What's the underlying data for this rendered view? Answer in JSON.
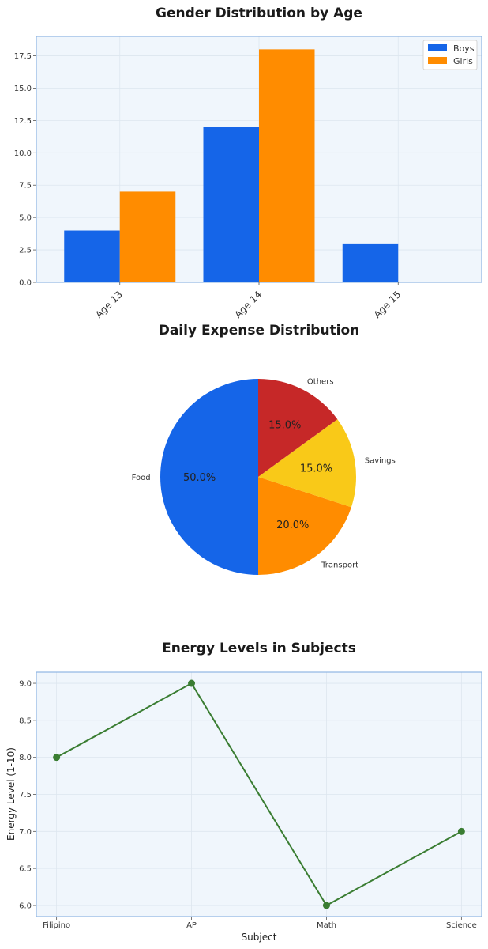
{
  "chart_data": [
    {
      "type": "bar",
      "title": "Gender Distribution by Age",
      "categories": [
        "Age 13",
        "Age 14",
        "Age 15"
      ],
      "series": [
        {
          "name": "Boys",
          "values": [
            4,
            12,
            3
          ],
          "color": "#1565e8"
        },
        {
          "name": "Girls",
          "values": [
            7,
            18,
            0
          ],
          "color": "#ff8c00"
        }
      ],
      "ylim": [
        0,
        19
      ],
      "yticks": [
        0,
        2.5,
        5,
        7.5,
        10,
        12.5,
        15,
        17.5
      ],
      "ytick_labels": [
        "0.0",
        "2.5",
        "5.0",
        "7.5",
        "10.0",
        "12.5",
        "15.0",
        "17.5"
      ],
      "legend": "top-right",
      "grid": true
    },
    {
      "type": "pie",
      "title": "Daily Expense Distribution",
      "labels": [
        "Food",
        "Transport",
        "Savings",
        "Others"
      ],
      "values": [
        50,
        20,
        15,
        15
      ],
      "pct_labels": [
        "50.0%",
        "20.0%",
        "15.0%",
        "15.0%"
      ],
      "colors": [
        "#1565e8",
        "#ff8c00",
        "#f9c918",
        "#c62828"
      ]
    },
    {
      "type": "line",
      "title": "Energy Levels in Subjects",
      "categories": [
        "Filipino",
        "AP",
        "Math",
        "Science"
      ],
      "values": [
        8,
        9,
        6,
        7
      ],
      "xlabel": "Subject",
      "ylabel": "Energy Level (1-10)",
      "ylim": [
        5.85,
        9.15
      ],
      "yticks": [
        6.0,
        6.5,
        7.0,
        7.5,
        8.0,
        8.5,
        9.0
      ],
      "ytick_labels": [
        "6.0",
        "6.5",
        "7.0",
        "7.5",
        "8.0",
        "8.5",
        "9.0"
      ],
      "color": "#3a7d32",
      "grid": true
    }
  ]
}
